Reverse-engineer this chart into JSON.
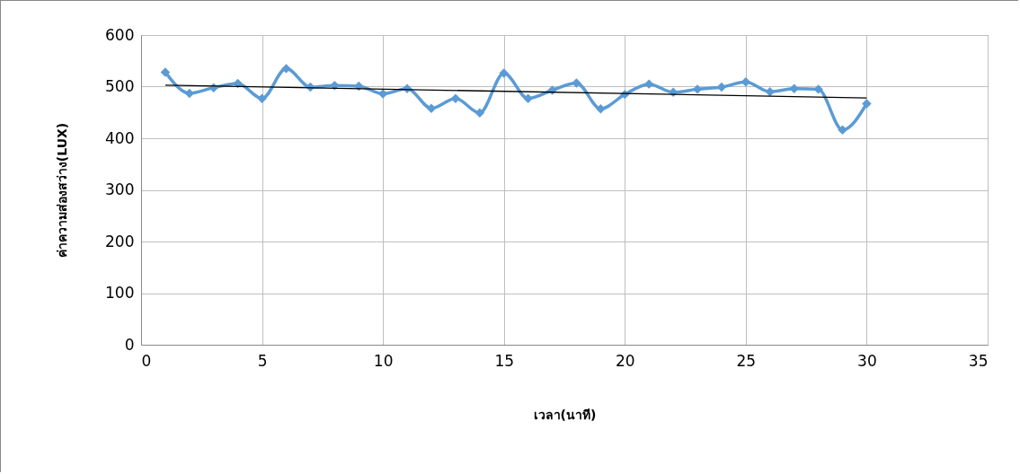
{
  "chart_data": {
    "type": "line",
    "xlabel": "เวลา(นาที)",
    "ylabel": "ค่าความส่องสว่าง(LUX)",
    "x": [
      1,
      2,
      3,
      4,
      5,
      6,
      7,
      8,
      9,
      10,
      11,
      12,
      13,
      14,
      15,
      16,
      17,
      18,
      19,
      20,
      21,
      22,
      23,
      24,
      25,
      26,
      27,
      28,
      29,
      30
    ],
    "series": [
      {
        "color": "#5b9bd5",
        "marker": "diamond",
        "values": [
          528,
          487,
          498,
          506,
          477,
          535,
          499,
          502,
          501,
          486,
          496,
          458,
          477,
          449,
          526,
          477,
          493,
          507,
          457,
          485,
          505,
          489,
          495,
          499,
          509,
          490,
          496,
          495,
          416,
          467
        ]
      },
      {
        "type": "line",
        "color": "#000000",
        "marker": "none",
        "x": [
          1,
          30
        ],
        "values": [
          503,
          478
        ]
      }
    ],
    "xlim": [
      0,
      35
    ],
    "xticks": [
      0,
      5,
      10,
      15,
      20,
      25,
      30,
      35
    ],
    "ylim": [
      0,
      600
    ],
    "yticks": [
      0,
      100,
      200,
      300,
      400,
      500,
      600
    ],
    "grid": true
  }
}
